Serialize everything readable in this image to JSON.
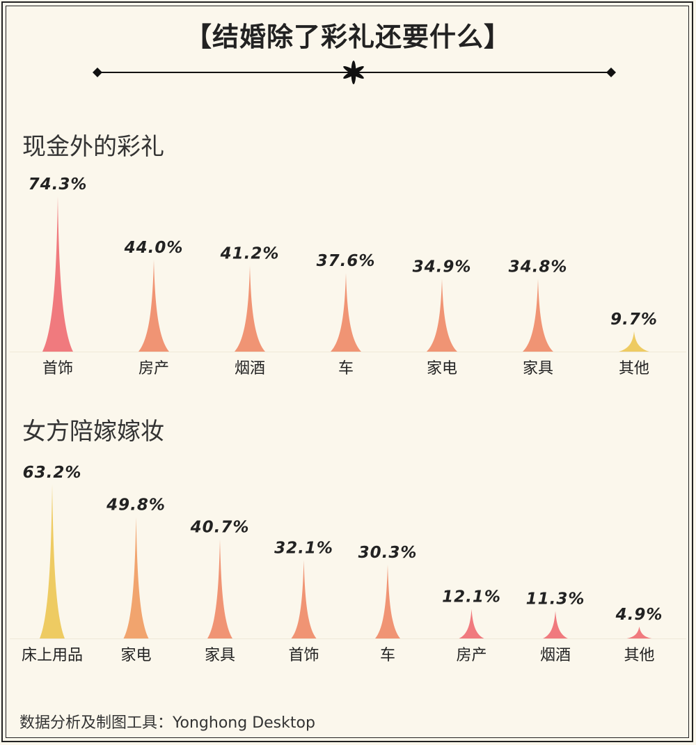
{
  "title": "【结婚除了彩礼还要什么】",
  "footer": "数据分析及制图工具：Yonghong Desktop",
  "chart_data": [
    {
      "type": "bar",
      "title": "现金外的彩礼",
      "categories": [
        "首饰",
        "房产",
        "烟酒",
        "车",
        "家电",
        "家具",
        "其他"
      ],
      "values": [
        74.3,
        44.0,
        41.2,
        37.6,
        34.9,
        34.8,
        9.7
      ],
      "value_labels": [
        "74.3%",
        "44.0%",
        "41.2%",
        "37.6%",
        "34.9%",
        "34.8%",
        "9.7%"
      ],
      "colors": [
        "#f07a7e",
        "#f09474",
        "#f09474",
        "#f09474",
        "#f09474",
        "#f09474",
        "#eecb62"
      ],
      "unit": "%"
    },
    {
      "type": "bar",
      "title": "女方陪嫁嫁妆",
      "categories": [
        "床上用品",
        "家电",
        "家具",
        "首饰",
        "车",
        "房产",
        "烟酒",
        "其他"
      ],
      "values": [
        63.2,
        49.8,
        40.7,
        32.1,
        30.3,
        12.1,
        11.3,
        4.9
      ],
      "value_labels": [
        "63.2%",
        "49.8%",
        "40.7%",
        "32.1%",
        "30.3%",
        "12.1%",
        "11.3%",
        "4.9%"
      ],
      "colors": [
        "#eecb62",
        "#f1a46e",
        "#f09474",
        "#f09474",
        "#f09474",
        "#f07a7e",
        "#f07a7e",
        "#f07a7e"
      ],
      "unit": "%"
    }
  ]
}
